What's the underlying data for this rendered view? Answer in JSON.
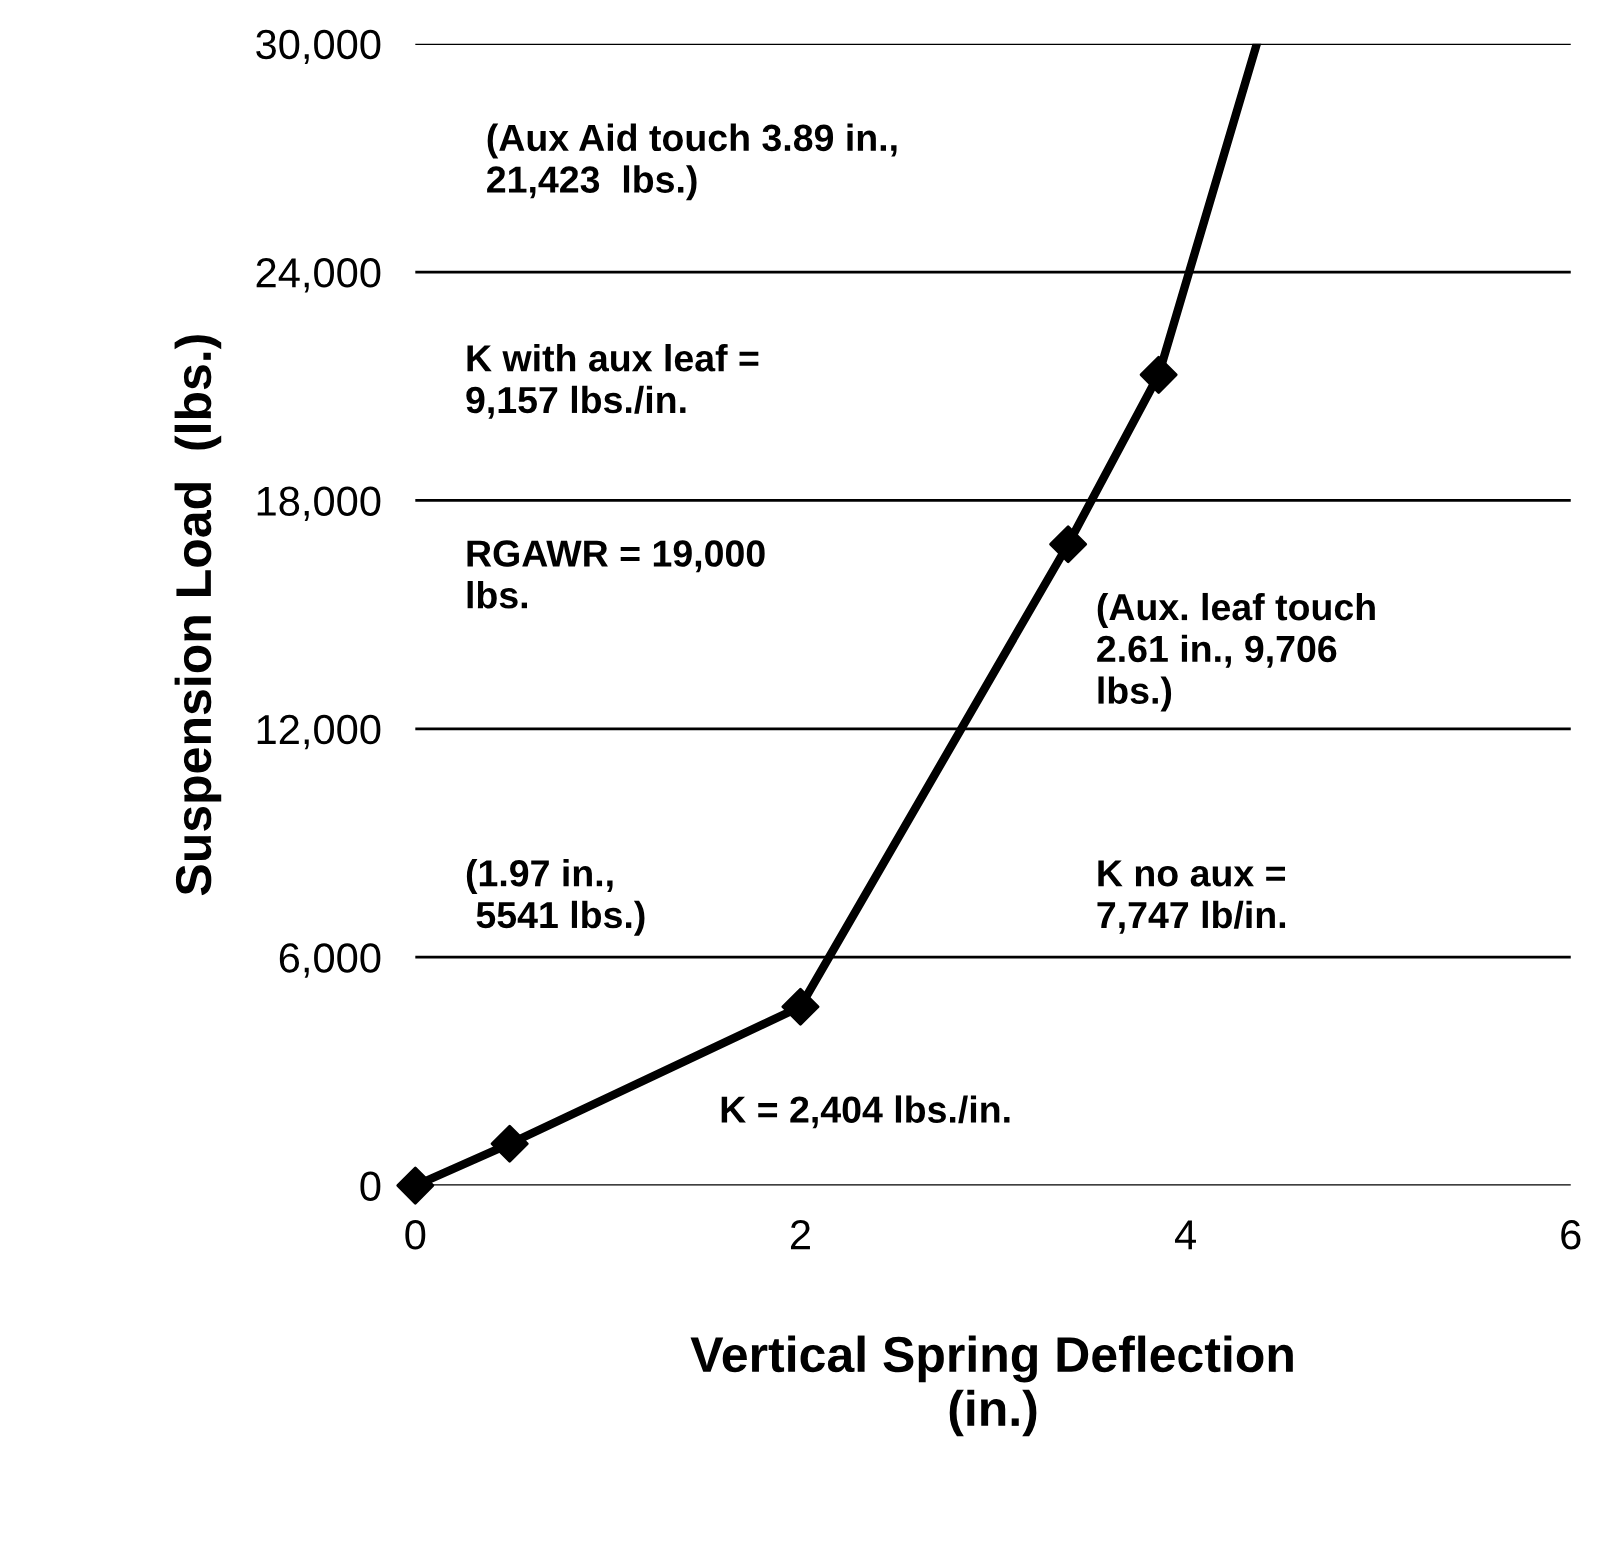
{
  "chart_data": {
    "type": "line",
    "xlabel": "Vertical Spring Deflection\n(in.)",
    "ylabel": "Suspension Load  (lbs.)",
    "series": [
      {
        "color": "#000000",
        "x": [
          0,
          0.49,
          2,
          3.39,
          3.86,
          4.37
        ],
        "values": [
          0,
          1100,
          4700,
          16850,
          21300,
          30000
        ],
        "marker": "none"
      },
      {
        "type": "scatter",
        "color": "#000000",
        "x": [
          0,
          0.49,
          2,
          3.39,
          3.86
        ],
        "values": [
          0,
          1100,
          4700,
          16850,
          21300
        ],
        "marker": "diamond"
      }
    ],
    "xlim": [
      0,
      6
    ],
    "xticks": [
      0,
      2,
      4,
      6
    ],
    "ylim": [
      0,
      30000
    ],
    "yticks": [
      {
        "value": 0,
        "label": "0"
      },
      {
        "value": 6000,
        "label": "6,000"
      },
      {
        "value": 12000,
        "label": "12,000"
      },
      {
        "value": 18000,
        "label": "18,000"
      },
      {
        "value": 24000,
        "label": "24,000"
      },
      {
        "value": 30000,
        "label": "30,000"
      }
    ],
    "grid": "y",
    "annotations": [
      "(Aux Aid touch 3.89 in.,\n21,423  lbs.)",
      "K with aux leaf =\n9,157 lbs./in.",
      "RGAWR = 19,000\nlbs.",
      "(Aux. leaf touch\n2.61 in., 9,706\nlbs.)",
      "(1.97 in.,\n 5541 lbs.)",
      "K no aux =\n7,747 lb/in.",
      "K = 2,404 lbs./in."
    ]
  }
}
